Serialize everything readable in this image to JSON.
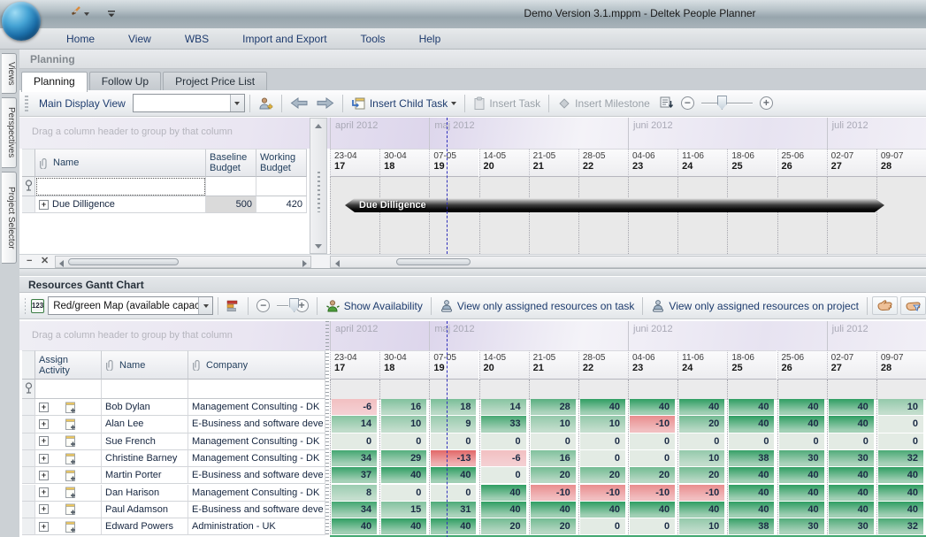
{
  "window": {
    "title": "Demo Version 3.1.mppm - Deltek People Planner"
  },
  "menu": {
    "items": [
      "Home",
      "View",
      "WBS",
      "Import and Export",
      "Tools",
      "Help"
    ]
  },
  "side_tabs": [
    "Views",
    "Perspectives",
    "Project Selector"
  ],
  "group_caption": "Planning",
  "tabs": {
    "items": [
      "Planning",
      "Follow Up",
      "Project Price List"
    ],
    "active": "Planning"
  },
  "upper": {
    "toolbar": {
      "view_label": "Main Display View",
      "view_value": "",
      "insert_child_task": "Insert Child Task",
      "insert_task": "Insert Task",
      "insert_milestone": "Insert Milestone"
    },
    "grid": {
      "group_hint": "Drag a column header to group by that column",
      "columns": [
        "Name",
        "Baseline Budget",
        "Working Budget"
      ],
      "rows": [
        {
          "name": "Due Dilligence",
          "baseline_budget": "500",
          "working_budget": "420"
        }
      ]
    },
    "gantt": {
      "bar_label": "Due Dilligence"
    }
  },
  "timeline": {
    "months": [
      {
        "label": "april 2012",
        "weeks": 2
      },
      {
        "label": "maj 2012",
        "weeks": 4
      },
      {
        "label": "juni 2012",
        "weeks": 4
      },
      {
        "label": "juli 2012",
        "weeks": 2
      }
    ],
    "weeks": [
      {
        "date": "23-04",
        "num": "17"
      },
      {
        "date": "30-04",
        "num": "18"
      },
      {
        "date": "07-05",
        "num": "19"
      },
      {
        "date": "14-05",
        "num": "20"
      },
      {
        "date": "21-05",
        "num": "21"
      },
      {
        "date": "28-05",
        "num": "22"
      },
      {
        "date": "04-06",
        "num": "23"
      },
      {
        "date": "11-06",
        "num": "24"
      },
      {
        "date": "18-06",
        "num": "25"
      },
      {
        "date": "25-06",
        "num": "26"
      },
      {
        "date": "02-07",
        "num": "27"
      },
      {
        "date": "09-07",
        "num": "28"
      }
    ]
  },
  "resources": {
    "caption": "Resources Gantt Chart",
    "toolbar": {
      "numeric_icon_label": "123",
      "map_value": "Red/green Map (available capacity)",
      "show_availability": "Show Availability",
      "view_task": "View only assigned resources on task",
      "view_project": "View only assigned resources on project"
    },
    "grid": {
      "group_hint": "Drag a column header to group by that column",
      "columns": [
        "Assign Activity",
        "Name",
        "Company"
      ]
    },
    "rows": [
      {
        "name": "Bob Dylan",
        "company": "Management Consulting - DK",
        "values": [
          -6,
          16,
          18,
          14,
          28,
          40,
          40,
          40,
          40,
          40,
          40,
          10
        ]
      },
      {
        "name": "Alan Lee",
        "company": "E-Business and software deve",
        "values": [
          14,
          10,
          9,
          33,
          10,
          10,
          -10,
          20,
          40,
          40,
          40,
          0
        ]
      },
      {
        "name": "Sue French",
        "company": "Management Consulting - DK",
        "values": [
          0,
          0,
          0,
          0,
          0,
          0,
          0,
          0,
          0,
          0,
          0,
          0
        ]
      },
      {
        "name": "Christine Barney",
        "company": "Management Consulting - DK",
        "values": [
          34,
          29,
          -13,
          -6,
          16,
          0,
          0,
          10,
          38,
          30,
          30,
          32
        ]
      },
      {
        "name": "Martin Porter",
        "company": "E-Business and software deve",
        "values": [
          37,
          40,
          40,
          0,
          20,
          20,
          20,
          20,
          40,
          40,
          40,
          40
        ]
      },
      {
        "name": "Dan Harison",
        "company": "Management Consulting - DK",
        "values": [
          8,
          0,
          0,
          40,
          -10,
          -10,
          -10,
          -10,
          40,
          40,
          40,
          40
        ]
      },
      {
        "name": "Paul Adamson",
        "company": "E-Business and software deve",
        "values": [
          34,
          15,
          31,
          40,
          40,
          40,
          40,
          40,
          40,
          40,
          40,
          40
        ]
      },
      {
        "name": "Edward Powers",
        "company": "Administration - UK",
        "values": [
          40,
          40,
          40,
          20,
          20,
          0,
          0,
          10,
          38,
          30,
          30,
          32
        ]
      }
    ]
  },
  "colors": {
    "heat_green": "#2f9e62",
    "heat_red": "#e05b5b",
    "heat_zero": "#e3ebe4",
    "heat_red_base": "#f6d8db",
    "today_line": "#2f2fbb",
    "accent_text": "#1e3c6e"
  }
}
